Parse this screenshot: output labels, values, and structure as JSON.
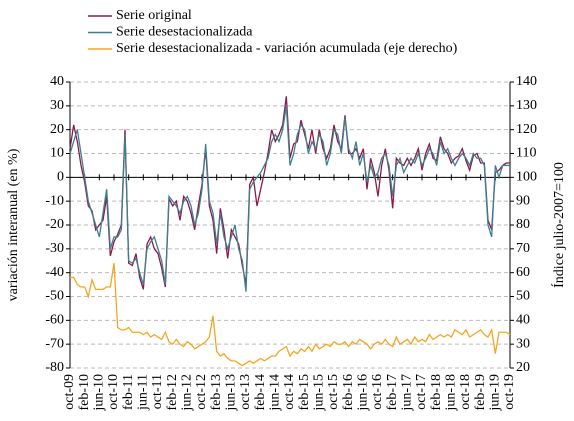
{
  "chart_data": {
    "type": "line",
    "categories": [
      "oct-09",
      null,
      null,
      null,
      "feb-10",
      null,
      null,
      null,
      "jun-10",
      null,
      null,
      null,
      "oct-10",
      null,
      null,
      null,
      "feb-11",
      null,
      null,
      null,
      "jun-11",
      null,
      null,
      null,
      "oct-11",
      null,
      null,
      null,
      "feb-12",
      null,
      null,
      null,
      "jun-12",
      null,
      null,
      null,
      "oct-12",
      null,
      null,
      null,
      "feb-13",
      null,
      null,
      null,
      "jun-13",
      null,
      null,
      null,
      "oct-13",
      null,
      null,
      null,
      "feb-14",
      null,
      null,
      null,
      "jun-14",
      null,
      null,
      null,
      "oct-14",
      null,
      null,
      null,
      "feb-15",
      null,
      null,
      null,
      "jun-15",
      null,
      null,
      null,
      "oct-15",
      null,
      null,
      null,
      "feb-16",
      null,
      null,
      null,
      "jun-16",
      null,
      null,
      null,
      "oct-16",
      null,
      null,
      null,
      "feb-17",
      null,
      null,
      null,
      "jun-17",
      null,
      null,
      null,
      "oct-17",
      null,
      null,
      null,
      "feb-18",
      null,
      null,
      null,
      "jun-18",
      null,
      null,
      null,
      "oct-18",
      null,
      null,
      null,
      "feb-19",
      null,
      null,
      null,
      "jun-19",
      null,
      null,
      null,
      "oct-19"
    ],
    "series": [
      {
        "name": "Serie original",
        "color": "#8b1a4a",
        "values": [
          12,
          22,
          15,
          5,
          -2,
          -12,
          -14,
          -22,
          -20,
          -18,
          -8,
          -33,
          -27,
          -24,
          -20,
          20,
          -36,
          -37,
          -32,
          -42,
          -47,
          -28,
          -25,
          -30,
          -32,
          -38,
          -46,
          -9,
          -12,
          -10,
          -18,
          -8,
          -10,
          -15,
          -22,
          -12,
          -3,
          12,
          -12,
          -18,
          -32,
          -13,
          -22,
          -34,
          -22,
          -25,
          -28,
          -37,
          -45,
          -3,
          0,
          -12,
          -5,
          2,
          10,
          20,
          15,
          18,
          22,
          34,
          8,
          14,
          15,
          24,
          18,
          12,
          20,
          10,
          20,
          12,
          8,
          12,
          22,
          15,
          12,
          26,
          10,
          10,
          12,
          8,
          12,
          -5,
          8,
          2,
          -8,
          5,
          12,
          3,
          -13,
          8,
          6,
          5,
          8,
          5,
          8,
          12,
          3,
          10,
          14,
          8,
          7,
          17,
          12,
          10,
          6,
          8,
          9,
          12,
          7,
          3,
          9,
          10,
          6,
          6,
          -18,
          -22,
          2,
          3,
          5,
          6,
          6
        ]
      },
      {
        "name": "Serie desestacionalizada",
        "color": "#3f7f8f",
        "values": [
          10,
          15,
          20,
          10,
          0,
          -10,
          -15,
          -20,
          -25,
          -15,
          -5,
          -30,
          -25,
          -25,
          -22,
          18,
          -35,
          -36,
          -34,
          -40,
          -45,
          -30,
          -27,
          -25,
          -30,
          -35,
          -45,
          -8,
          -10,
          -12,
          -15,
          -10,
          -8,
          -12,
          -20,
          -15,
          -5,
          14,
          -10,
          -15,
          -28,
          -15,
          -25,
          -30,
          -25,
          -20,
          -30,
          -35,
          -48,
          -5,
          -2,
          0,
          2,
          5,
          8,
          15,
          18,
          15,
          20,
          30,
          5,
          10,
          18,
          22,
          20,
          10,
          15,
          12,
          18,
          15,
          5,
          10,
          20,
          18,
          10,
          25,
          12,
          8,
          15,
          5,
          10,
          -2,
          5,
          0,
          2,
          8,
          10,
          5,
          -8,
          5,
          8,
          2,
          5,
          8,
          6,
          10,
          5,
          8,
          12,
          10,
          5,
          15,
          10,
          12,
          8,
          5,
          8,
          10,
          8,
          5,
          10,
          8,
          8,
          5,
          -20,
          -25,
          5,
          0,
          5,
          5,
          5
        ]
      },
      {
        "name": "Serie desestacionalizada - variación acumulada (eje derecho)",
        "color": "#f5a623",
        "axis": "y2",
        "values": [
          58,
          58,
          55,
          54,
          54,
          50,
          57,
          53,
          53,
          53,
          54,
          54,
          64,
          37,
          36,
          36,
          37,
          35,
          35,
          35,
          34,
          35,
          33,
          34,
          33,
          32,
          35,
          31,
          30,
          32,
          30,
          29,
          31,
          30,
          28,
          29,
          30,
          31,
          33,
          42,
          27,
          25,
          26,
          24,
          23,
          23,
          22,
          21,
          22,
          23,
          22,
          23,
          24,
          23,
          24,
          25,
          25,
          27,
          28,
          29,
          25,
          27,
          26,
          28,
          27,
          29,
          27,
          30,
          28,
          29,
          30,
          29,
          31,
          30,
          30,
          31,
          29,
          31,
          30,
          32,
          31,
          30,
          28,
          30,
          31,
          30,
          32,
          30,
          29,
          33,
          30,
          31,
          32,
          30,
          33,
          31,
          32,
          31,
          34,
          32,
          33,
          34,
          33,
          34,
          33,
          36,
          35,
          34,
          36,
          33,
          34,
          35,
          36,
          34,
          33,
          36,
          26,
          35,
          35,
          35,
          34
        ]
      }
    ],
    "y_label": "variación  interanual  (en %)",
    "y2_label": "Índice  julio-2007=100",
    "ylim": [
      -80,
      40
    ],
    "yticks": [
      -80,
      -70,
      -60,
      -50,
      -40,
      -30,
      -20,
      -10,
      0,
      10,
      20,
      30,
      40
    ],
    "y2lim": [
      20,
      140
    ],
    "y2ticks": [
      20,
      30,
      40,
      50,
      60,
      70,
      80,
      90,
      100,
      110,
      120,
      130,
      140
    ],
    "grid": true,
    "legend": "top-left"
  }
}
